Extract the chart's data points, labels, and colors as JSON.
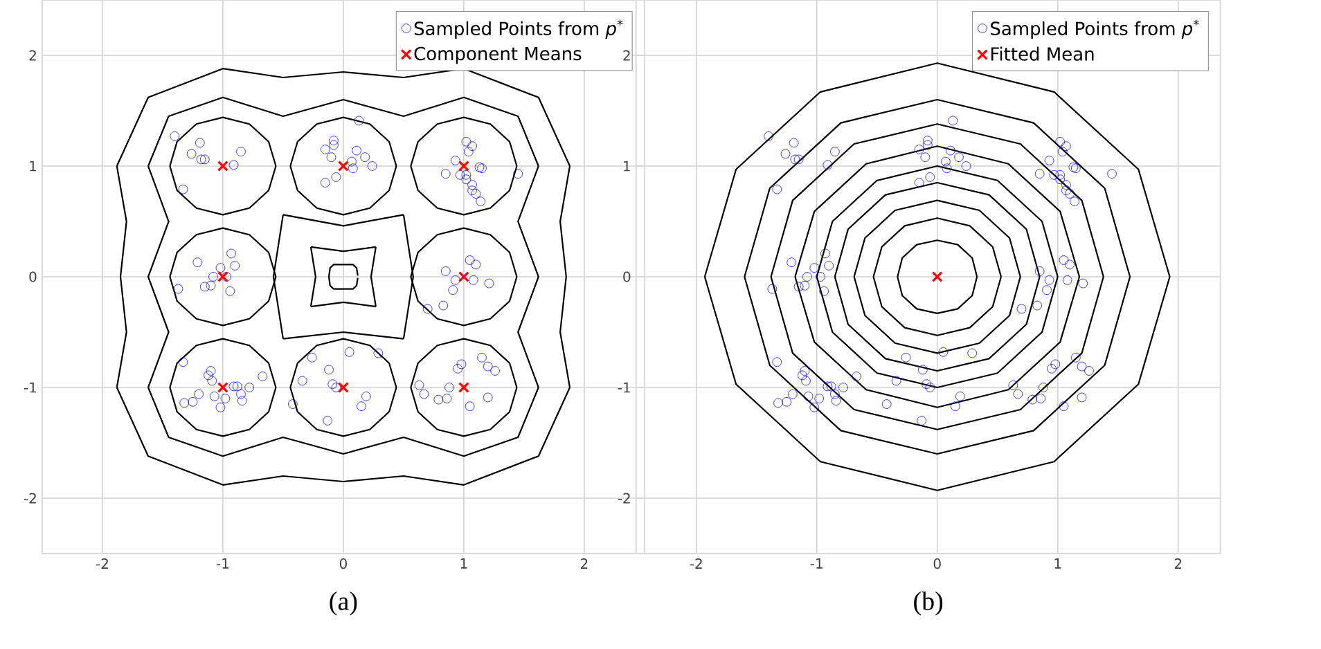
{
  "chart_data": [
    {
      "type": "scatter",
      "title": "(a)",
      "xlim": [
        -2.5,
        2.5
      ],
      "ylim": [
        -2.5,
        2.5
      ],
      "xticks": [
        -2,
        -1,
        0,
        1,
        2
      ],
      "yticks": [
        -2,
        -1,
        0,
        1,
        2
      ],
      "grid": true,
      "legend": "top right",
      "series": [
        {
          "type": "line",
          "color": "#000000",
          "x": [
            -1.44,
            -1.38,
            -1.22,
            -1,
            -0.78,
            -0.62,
            -0.56
          ],
          "values": [
            1,
            1.22,
            1.38,
            1.44,
            1.38,
            1.22,
            1
          ]
        },
        {
          "type": "line",
          "color": "#000000",
          "x": [
            -1.44,
            -1.38,
            -1.22,
            -1,
            -0.78,
            -0.62,
            -0.56
          ],
          "values": [
            1,
            0.78,
            0.62,
            0.56,
            0.62,
            0.78,
            1
          ]
        },
        {
          "type": "line",
          "color": "#000000",
          "x": [
            -0.44,
            -0.38,
            -0.22,
            0,
            0.22,
            0.38,
            0.44
          ],
          "values": [
            1,
            1.22,
            1.38,
            1.44,
            1.38,
            1.22,
            1
          ]
        },
        {
          "type": "line",
          "color": "#000000",
          "x": [
            -0.44,
            -0.38,
            -0.22,
            0,
            0.22,
            0.38,
            0.44
          ],
          "values": [
            1,
            0.78,
            0.62,
            0.56,
            0.62,
            0.78,
            1
          ]
        },
        {
          "type": "line",
          "color": "#000000",
          "x": [
            0.56,
            0.62,
            0.78,
            1,
            1.22,
            1.38,
            1.44
          ],
          "values": [
            1,
            1.22,
            1.38,
            1.44,
            1.38,
            1.22,
            1
          ]
        },
        {
          "type": "line",
          "color": "#000000",
          "x": [
            0.56,
            0.62,
            0.78,
            1,
            1.22,
            1.38,
            1.44
          ],
          "values": [
            1,
            0.78,
            0.62,
            0.56,
            0.62,
            0.78,
            1
          ]
        },
        {
          "type": "line",
          "color": "#000000",
          "x": [
            -1.44,
            -1.38,
            -1.22,
            -1,
            -0.78,
            -0.62,
            -0.56
          ],
          "values": [
            0,
            0.22,
            0.38,
            0.44,
            0.38,
            0.22,
            0
          ]
        },
        {
          "type": "line",
          "color": "#000000",
          "x": [
            -1.44,
            -1.38,
            -1.22,
            -1,
            -0.78,
            -0.62,
            -0.56
          ],
          "values": [
            0,
            -0.22,
            -0.38,
            -0.44,
            -0.38,
            -0.22,
            0
          ]
        },
        {
          "type": "line",
          "color": "#000000",
          "x": [
            0.56,
            0.62,
            0.78,
            1,
            1.22,
            1.38,
            1.44
          ],
          "values": [
            0,
            0.22,
            0.38,
            0.44,
            0.38,
            0.22,
            0
          ]
        },
        {
          "type": "line",
          "color": "#000000",
          "x": [
            0.56,
            0.62,
            0.78,
            1,
            1.22,
            1.38,
            1.44
          ],
          "values": [
            0,
            -0.22,
            -0.38,
            -0.44,
            -0.38,
            -0.22,
            0
          ]
        },
        {
          "type": "line",
          "color": "#000000",
          "x": [
            -1.44,
            -1.38,
            -1.22,
            -1,
            -0.78,
            -0.62,
            -0.56
          ],
          "values": [
            -1,
            -0.78,
            -0.62,
            -0.56,
            -0.62,
            -0.78,
            -1
          ]
        },
        {
          "type": "line",
          "color": "#000000",
          "x": [
            -1.44,
            -1.38,
            -1.22,
            -1,
            -0.78,
            -0.62,
            -0.56
          ],
          "values": [
            -1,
            -1.22,
            -1.38,
            -1.44,
            -1.38,
            -1.22,
            -1
          ]
        },
        {
          "type": "line",
          "color": "#000000",
          "x": [
            -0.44,
            -0.38,
            -0.22,
            0,
            0.22,
            0.38,
            0.44
          ],
          "values": [
            -1,
            -0.78,
            -0.62,
            -0.56,
            -0.62,
            -0.78,
            -1
          ]
        },
        {
          "type": "line",
          "color": "#000000",
          "x": [
            -0.44,
            -0.38,
            -0.22,
            0,
            0.22,
            0.38,
            0.44
          ],
          "values": [
            -1,
            -1.22,
            -1.38,
            -1.44,
            -1.38,
            -1.22,
            -1
          ]
        },
        {
          "type": "line",
          "color": "#000000",
          "x": [
            0.56,
            0.62,
            0.78,
            1,
            1.22,
            1.38,
            1.44
          ],
          "values": [
            -1,
            -0.78,
            -0.62,
            -0.56,
            -0.62,
            -0.78,
            -1
          ]
        },
        {
          "type": "line",
          "color": "#000000",
          "x": [
            0.56,
            0.62,
            0.78,
            1,
            1.22,
            1.38,
            1.44
          ],
          "values": [
            -1,
            -1.22,
            -1.38,
            -1.44,
            -1.38,
            -1.22,
            -1
          ]
        },
        {
          "type": "line",
          "color": "#000000",
          "x": [
            0.12,
            0.11,
            0.08,
            -0.08,
            -0.11,
            -0.12,
            -0.11,
            -0.08,
            0.08,
            0.11,
            0.12
          ],
          "values": [
            0.01,
            0.08,
            0.11,
            0.11,
            0.08,
            0,
            -0.08,
            -0.11,
            -0.11,
            -0.08,
            -0.01
          ]
        },
        {
          "type": "line",
          "color": "#000000",
          "x": [
            -0.27,
            0,
            0.27
          ],
          "values": [
            0.27,
            0.23,
            0.27
          ]
        },
        {
          "type": "line",
          "color": "#000000",
          "x": [
            -0.27,
            0,
            0.27
          ],
          "values": [
            -0.27,
            -0.23,
            -0.27
          ]
        },
        {
          "type": "line",
          "color": "#000000",
          "x": [
            -0.27,
            -0.23,
            -0.27
          ],
          "values": [
            0.27,
            0,
            -0.27
          ]
        },
        {
          "type": "line",
          "color": "#000000",
          "x": [
            0.27,
            0.23,
            0.27
          ],
          "values": [
            0.27,
            0,
            -0.27
          ]
        },
        {
          "type": "line",
          "color": "#000000",
          "x": [
            -0.5,
            0,
            0.5
          ],
          "values": [
            0.56,
            0.46,
            0.56
          ]
        },
        {
          "type": "line",
          "color": "#000000",
          "x": [
            -0.5,
            0,
            0.5
          ],
          "values": [
            -0.56,
            -0.5,
            -0.56
          ]
        },
        {
          "type": "line",
          "color": "#000000",
          "x": [
            -0.5,
            -0.58,
            -0.5
          ],
          "values": [
            0.56,
            0,
            -0.56
          ]
        },
        {
          "type": "line",
          "color": "#000000",
          "x": [
            0.5,
            0.58,
            0.5
          ],
          "values": [
            0.56,
            0,
            -0.56
          ]
        },
        {
          "type": "line",
          "color": "#000000",
          "x": [
            -1.62,
            -1.45,
            -1,
            -0.5,
            0,
            0.5,
            1,
            1.45,
            1.62
          ],
          "values": [
            1,
            1.45,
            1.62,
            1.45,
            1.6,
            1.45,
            1.62,
            1.45,
            1
          ]
        },
        {
          "type": "line",
          "color": "#000000",
          "x": [
            -1.62,
            -1.45,
            -1,
            -0.5,
            0,
            0.5,
            1,
            1.45,
            1.62
          ],
          "values": [
            -1,
            -1.45,
            -1.62,
            -1.45,
            -1.6,
            -1.45,
            -1.62,
            -1.45,
            -1
          ]
        },
        {
          "type": "line",
          "color": "#000000",
          "x": [
            -1.62,
            -1.45,
            -1.62,
            -1.45,
            -1.62
          ],
          "values": [
            1,
            0.5,
            0,
            -0.5,
            -1
          ]
        },
        {
          "type": "line",
          "color": "#000000",
          "x": [
            1.62,
            1.45,
            1.62,
            1.45,
            1.62
          ],
          "values": [
            1,
            0.5,
            0,
            -0.5,
            -1
          ]
        },
        {
          "type": "line",
          "color": "#000000",
          "x": [
            -1.88,
            -1.62,
            -1,
            -0.5,
            0,
            0.5,
            1,
            1.62,
            1.88
          ],
          "values": [
            1,
            1.62,
            1.88,
            1.8,
            1.85,
            1.8,
            1.88,
            1.62,
            1
          ]
        },
        {
          "type": "line",
          "color": "#000000",
          "x": [
            -1.88,
            -1.62,
            -1,
            -0.5,
            0,
            0.5,
            1,
            1.62,
            1.88
          ],
          "values": [
            -1,
            -1.62,
            -1.88,
            -1.8,
            -1.85,
            -1.8,
            -1.88,
            -1.62,
            -1
          ]
        },
        {
          "type": "line",
          "color": "#000000",
          "x": [
            -1.88,
            -1.8,
            -1.85,
            -1.8,
            -1.88
          ],
          "values": [
            1,
            0.5,
            0,
            -0.5,
            -1
          ]
        },
        {
          "type": "line",
          "color": "#000000",
          "x": [
            1.88,
            1.8,
            1.85,
            1.8,
            1.88
          ],
          "values": [
            1,
            0.5,
            0,
            -0.5,
            -1
          ]
        },
        {
          "name": "Sampled Points from *p*$^{*}$",
          "marker": "circle",
          "color": "#0000ff",
          "x": [
            -1.4,
            -1.19,
            -1.26,
            -1.18,
            -1.15,
            -0.85,
            -0.91,
            -1.33,
            0.13,
            -0.08,
            -0.08,
            -0.15,
            -0.1,
            0.11,
            0.18,
            0.07,
            0.08,
            0.24,
            -0.06,
            -0.15,
            1.02,
            1.07,
            1.04,
            0.93,
            0.85,
            0.97,
            1.02,
            1.13,
            1.15,
            1.45,
            1.02,
            1.07,
            1.07,
            1.1,
            1.14,
            -0.93,
            -1.21,
            -1.02,
            -0.9,
            -1.08,
            -0.97,
            -1.15,
            -1.1,
            -0.94,
            -1.37,
            1.05,
            1.1,
            0.85,
            0.93,
            1.08,
            1.21,
            0.91,
            0.83,
            0.7,
            -1.33,
            -1.1,
            -1.12,
            -1.09,
            -0.67,
            -0.91,
            -0.88,
            -0.78,
            -1.2,
            -1.07,
            -0.98,
            -0.85,
            -0.84,
            -1.32,
            -1.25,
            -1.02,
            0.05,
            0.29,
            -0.26,
            -0.12,
            -0.34,
            -0.09,
            -0.06,
            0.19,
            0.15,
            -0.42,
            -0.13,
            1.15,
            1.2,
            1.26,
            0.98,
            0.95,
            0.63,
            0.67,
            0.79,
            0.86,
            0.88,
            1.2,
            1.05
          ],
          "values": [
            1.27,
            1.21,
            1.11,
            1.06,
            1.06,
            1.13,
            1.01,
            0.79,
            1.41,
            1.23,
            1.19,
            1.15,
            1.08,
            1.14,
            1.08,
            1.04,
            0.98,
            1.0,
            0.9,
            0.85,
            1.22,
            1.18,
            1.13,
            1.05,
            0.93,
            0.92,
            0.92,
            0.99,
            0.98,
            0.93,
            0.88,
            0.83,
            0.78,
            0.75,
            0.68,
            0.21,
            0.13,
            0.08,
            0.1,
            0.0,
            0.0,
            -0.09,
            -0.08,
            -0.13,
            -0.11,
            0.15,
            0.11,
            0.05,
            -0.03,
            -0.03,
            -0.06,
            -0.12,
            -0.26,
            -0.29,
            -0.77,
            -0.85,
            -0.89,
            -0.94,
            -0.9,
            -0.99,
            -0.99,
            -1.0,
            -1.06,
            -1.08,
            -1.1,
            -1.06,
            -1.12,
            -1.14,
            -1.13,
            -1.18,
            -0.68,
            -0.69,
            -0.73,
            -0.84,
            -0.94,
            -0.97,
            -1.0,
            -1.08,
            -1.17,
            -1.15,
            -1.3,
            -0.73,
            -0.81,
            -0.85,
            -0.79,
            -0.83,
            -0.98,
            -1.06,
            -1.11,
            -1.1,
            -1.0,
            -1.09,
            -1.17
          ]
        },
        {
          "name": "Component Means",
          "marker": "cross",
          "color": "#ff0000",
          "x": [
            -1,
            0,
            1,
            -1,
            1,
            -1,
            0,
            1
          ],
          "values": [
            1,
            1,
            1,
            0,
            0,
            -1,
            -1,
            -1
          ]
        }
      ]
    },
    {
      "type": "scatter",
      "title": "(b)",
      "xlim": [
        -2.5,
        2.35
      ],
      "ylim": [
        -2.5,
        2.5
      ],
      "xticks": [
        -2,
        -1,
        0,
        1,
        2
      ],
      "yticks": [
        -2,
        -1,
        0,
        1,
        2
      ],
      "grid": true,
      "legend": "top right",
      "series": [
        {
          "type": "line",
          "color": "#000000",
          "x": [
            -0.33,
            -0.29,
            -0.17,
            0,
            0.17,
            0.29,
            0.33
          ],
          "values": [
            0,
            0.17,
            0.29,
            0.33,
            0.29,
            0.17,
            0
          ]
        },
        {
          "type": "line",
          "color": "#000000",
          "x": [
            -0.33,
            -0.29,
            -0.17,
            0,
            0.17,
            0.29,
            0.33
          ],
          "values": [
            0,
            -0.17,
            -0.29,
            -0.33,
            -0.29,
            -0.17,
            0
          ]
        },
        {
          "type": "line",
          "color": "#000000",
          "x": [
            -0.53,
            -0.46,
            -0.27,
            0,
            0.27,
            0.46,
            0.53
          ],
          "values": [
            0,
            0.27,
            0.46,
            0.53,
            0.46,
            0.27,
            0
          ]
        },
        {
          "type": "line",
          "color": "#000000",
          "x": [
            -0.53,
            -0.46,
            -0.27,
            0,
            0.27,
            0.46,
            0.53
          ],
          "values": [
            0,
            -0.27,
            -0.46,
            -0.53,
            -0.46,
            -0.27,
            0
          ]
        },
        {
          "type": "line",
          "color": "#000000",
          "x": [
            -0.69,
            -0.6,
            -0.35,
            0,
            0.35,
            0.6,
            0.69
          ],
          "values": [
            0,
            0.35,
            0.6,
            0.69,
            0.6,
            0.35,
            0
          ]
        },
        {
          "type": "line",
          "color": "#000000",
          "x": [
            -0.69,
            -0.6,
            -0.35,
            0,
            0.35,
            0.6,
            0.69
          ],
          "values": [
            0,
            -0.35,
            -0.6,
            -0.69,
            -0.6,
            -0.35,
            0
          ]
        },
        {
          "type": "line",
          "color": "#000000",
          "x": [
            -0.85,
            -0.74,
            -0.43,
            0,
            0.43,
            0.74,
            0.85
          ],
          "values": [
            0,
            0.43,
            0.74,
            0.85,
            0.74,
            0.43,
            0
          ]
        },
        {
          "type": "line",
          "color": "#000000",
          "x": [
            -0.85,
            -0.74,
            -0.43,
            0,
            0.43,
            0.74,
            0.85
          ],
          "values": [
            0,
            -0.43,
            -0.74,
            -0.85,
            -0.74,
            -0.43,
            0
          ]
        },
        {
          "type": "line",
          "color": "#000000",
          "x": [
            -1,
            -0.87,
            -0.5,
            0,
            0.5,
            0.87,
            1
          ],
          "values": [
            0,
            0.5,
            0.87,
            1,
            0.87,
            0.5,
            0
          ]
        },
        {
          "type": "line",
          "color": "#000000",
          "x": [
            -1,
            -0.87,
            -0.5,
            0,
            0.5,
            0.87,
            1
          ],
          "values": [
            0,
            -0.5,
            -0.87,
            -1,
            -0.87,
            -0.5,
            0
          ]
        },
        {
          "type": "line",
          "color": "#000000",
          "x": [
            -1.18,
            -1.02,
            -0.59,
            0,
            0.59,
            1.02,
            1.18
          ],
          "values": [
            0,
            0.59,
            1.02,
            1.18,
            1.02,
            0.59,
            0
          ]
        },
        {
          "type": "line",
          "color": "#000000",
          "x": [
            -1.18,
            -1.02,
            -0.59,
            0,
            0.59,
            1.02,
            1.18
          ],
          "values": [
            0,
            -0.59,
            -1.02,
            -1.18,
            -1.02,
            -0.59,
            0
          ]
        },
        {
          "type": "line",
          "color": "#000000",
          "x": [
            -1.38,
            -1.2,
            -0.69,
            0,
            0.69,
            1.2,
            1.38
          ],
          "values": [
            0,
            0.69,
            1.2,
            1.38,
            1.2,
            0.69,
            0
          ]
        },
        {
          "type": "line",
          "color": "#000000",
          "x": [
            -1.38,
            -1.2,
            -0.69,
            0,
            0.69,
            1.2,
            1.38
          ],
          "values": [
            0,
            -0.69,
            -1.2,
            -1.38,
            -1.2,
            -0.69,
            0
          ]
        },
        {
          "type": "line",
          "color": "#000000",
          "x": [
            -1.6,
            -1.39,
            -0.8,
            0,
            0.8,
            1.39,
            1.6
          ],
          "values": [
            0,
            0.8,
            1.39,
            1.6,
            1.39,
            0.8,
            0
          ]
        },
        {
          "type": "line",
          "color": "#000000",
          "x": [
            -1.6,
            -1.39,
            -0.8,
            0,
            0.8,
            1.39,
            1.6
          ],
          "values": [
            0,
            -0.8,
            -1.39,
            -1.6,
            -1.39,
            -0.8,
            0
          ]
        },
        {
          "type": "line",
          "color": "#000000",
          "x": [
            -1.93,
            -1.67,
            -0.97,
            0,
            0.97,
            1.67,
            1.93
          ],
          "values": [
            0,
            0.97,
            1.67,
            1.93,
            1.67,
            0.97,
            0
          ]
        },
        {
          "type": "line",
          "color": "#000000",
          "x": [
            -1.93,
            -1.67,
            -0.97,
            0,
            0.97,
            1.67,
            1.93
          ],
          "values": [
            0,
            -0.97,
            -1.67,
            -1.93,
            -1.67,
            -0.97,
            0
          ]
        },
        {
          "name": "Sampled Points from *p*$^{*}$",
          "marker": "circle",
          "color": "#0000ff",
          "x": [
            -1.4,
            -1.19,
            -1.26,
            -1.18,
            -1.15,
            -0.85,
            -0.91,
            -1.33,
            0.13,
            -0.08,
            -0.08,
            -0.15,
            -0.1,
            0.11,
            0.18,
            0.07,
            0.08,
            0.24,
            -0.06,
            -0.15,
            1.02,
            1.07,
            1.04,
            0.93,
            0.85,
            0.97,
            1.02,
            1.13,
            1.15,
            1.45,
            1.02,
            1.07,
            1.07,
            1.1,
            1.14,
            -0.93,
            -1.21,
            -1.02,
            -0.9,
            -1.08,
            -0.97,
            -1.15,
            -1.1,
            -0.94,
            -1.37,
            1.05,
            1.1,
            0.85,
            0.93,
            1.08,
            1.21,
            0.91,
            0.83,
            0.7,
            -1.33,
            -1.1,
            -1.12,
            -1.09,
            -0.67,
            -0.91,
            -0.88,
            -0.78,
            -1.2,
            -1.07,
            -0.98,
            -0.85,
            -0.84,
            -1.32,
            -1.25,
            -1.02,
            0.05,
            0.29,
            -0.26,
            -0.12,
            -0.34,
            -0.09,
            -0.06,
            0.19,
            0.15,
            -0.42,
            -0.13,
            1.15,
            1.2,
            1.26,
            0.98,
            0.95,
            0.63,
            0.67,
            0.79,
            0.86,
            0.88,
            1.2,
            1.05
          ],
          "values": [
            1.27,
            1.21,
            1.11,
            1.06,
            1.06,
            1.13,
            1.01,
            0.79,
            1.41,
            1.23,
            1.19,
            1.15,
            1.08,
            1.14,
            1.08,
            1.04,
            0.98,
            1.0,
            0.9,
            0.85,
            1.22,
            1.18,
            1.13,
            1.05,
            0.93,
            0.92,
            0.92,
            0.99,
            0.98,
            0.93,
            0.88,
            0.83,
            0.78,
            0.75,
            0.68,
            0.21,
            0.13,
            0.08,
            0.1,
            0.0,
            0.0,
            -0.09,
            -0.08,
            -0.13,
            -0.11,
            0.15,
            0.11,
            0.05,
            -0.03,
            -0.03,
            -0.06,
            -0.12,
            -0.26,
            -0.29,
            -0.77,
            -0.85,
            -0.89,
            -0.94,
            -0.9,
            -0.99,
            -0.99,
            -1.0,
            -1.06,
            -1.08,
            -1.1,
            -1.06,
            -1.12,
            -1.14,
            -1.13,
            -1.18,
            -0.68,
            -0.69,
            -0.73,
            -0.84,
            -0.94,
            -0.97,
            -1.0,
            -1.08,
            -1.17,
            -1.15,
            -1.3,
            -0.73,
            -0.81,
            -0.85,
            -0.79,
            -0.83,
            -0.98,
            -1.06,
            -1.11,
            -1.1,
            -1.0,
            -1.09,
            -1.17
          ]
        },
        {
          "name": "Fitted Mean",
          "marker": "cross",
          "color": "#ff0000",
          "x": [
            0
          ],
          "values": [
            0
          ]
        }
      ]
    }
  ]
}
